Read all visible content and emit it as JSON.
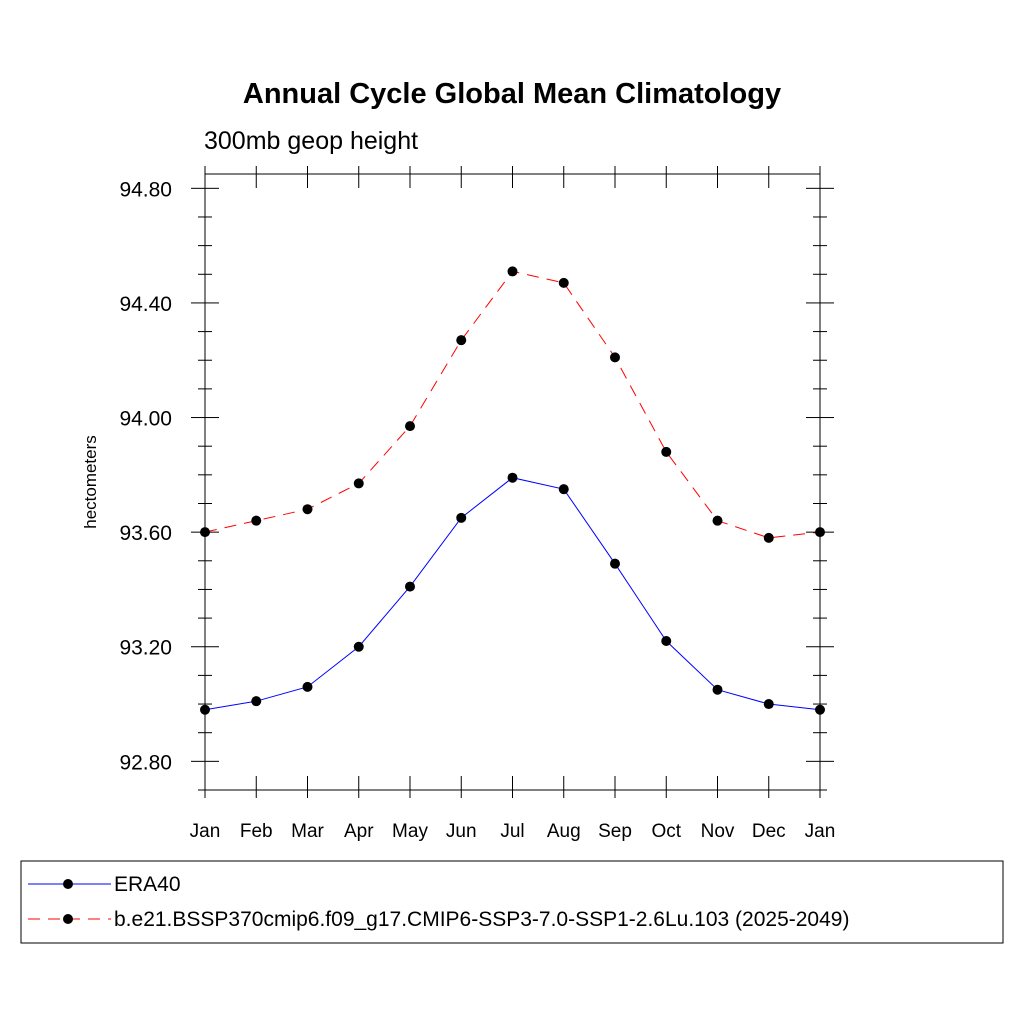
{
  "chart_data": {
    "type": "line",
    "title": "Annual Cycle Global Mean Climatology",
    "subtitle": "300mb geop height",
    "xlabel": "",
    "ylabel": "hectometers",
    "categories": [
      "Jan",
      "Feb",
      "Mar",
      "Apr",
      "May",
      "Jun",
      "Jul",
      "Aug",
      "Sep",
      "Oct",
      "Nov",
      "Dec",
      "Jan"
    ],
    "ylim": [
      92.7,
      94.85
    ],
    "yticks": [
      92.8,
      93.2,
      93.6,
      94.0,
      94.4,
      94.8
    ],
    "ytick_labels": [
      "92.80",
      "93.20",
      "93.60",
      "94.00",
      "94.40",
      "94.80"
    ],
    "yminor_step": 0.1,
    "grid": false,
    "legend_position": "bottom",
    "series": [
      {
        "name": "ERA40",
        "color": "#0000ff",
        "dash": "solid",
        "values": [
          92.98,
          93.01,
          93.06,
          93.2,
          93.41,
          93.65,
          93.79,
          93.75,
          93.49,
          93.22,
          93.05,
          93.0,
          92.98
        ]
      },
      {
        "name": "b.e21.BSSP370cmip6.f09_g17.CMIP6-SSP3-7.0-SSP1-2.6Lu.103 (2025-2049)",
        "color": "#ff0000",
        "dash": "dashed",
        "values": [
          93.6,
          93.64,
          93.68,
          93.77,
          93.97,
          94.27,
          94.51,
          94.47,
          94.21,
          93.88,
          93.64,
          93.58,
          93.6
        ]
      }
    ]
  }
}
